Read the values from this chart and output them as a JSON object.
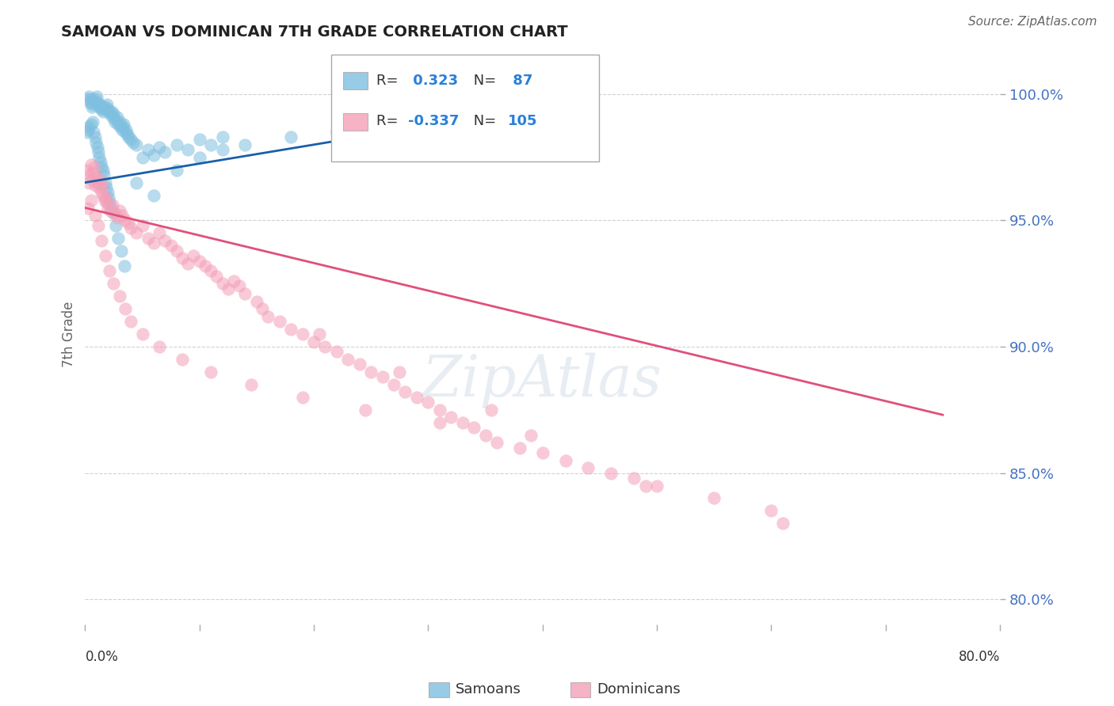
{
  "title": "SAMOAN VS DOMINICAN 7TH GRADE CORRELATION CHART",
  "source": "Source: ZipAtlas.com",
  "ylabel": "7th Grade",
  "yticks": [
    80.0,
    85.0,
    90.0,
    95.0,
    100.0
  ],
  "ytick_labels": [
    "80.0%",
    "85.0%",
    "90.0%",
    "95.0%",
    "100.0%"
  ],
  "xlim": [
    0.0,
    80.0
  ],
  "ylim": [
    79.0,
    102.0
  ],
  "blue_r": 0.323,
  "blue_n": 87,
  "pink_r": -0.337,
  "pink_n": 105,
  "blue_color": "#7fbfdf",
  "pink_color": "#f4a0b8",
  "blue_line_color": "#1a5fa8",
  "pink_line_color": "#e0507a",
  "legend_label_blue": "Samoans",
  "legend_label_pink": "Dominicans",
  "blue_line_x0": 0.0,
  "blue_line_y0": 96.5,
  "blue_line_x1": 40.0,
  "blue_line_y1": 99.5,
  "pink_line_x0": 0.0,
  "pink_line_y0": 95.5,
  "pink_line_x1": 75.0,
  "pink_line_y1": 87.3,
  "blue_x": [
    0.2,
    0.3,
    0.4,
    0.5,
    0.6,
    0.7,
    0.8,
    0.9,
    1.0,
    1.1,
    1.2,
    1.3,
    1.4,
    1.5,
    1.6,
    1.7,
    1.8,
    1.9,
    2.0,
    2.1,
    2.2,
    2.3,
    2.4,
    2.5,
    2.6,
    2.7,
    2.8,
    2.9,
    3.0,
    3.1,
    3.2,
    3.3,
    3.4,
    3.5,
    3.6,
    3.7,
    3.8,
    4.0,
    4.2,
    4.5,
    5.0,
    5.5,
    6.0,
    6.5,
    7.0,
    8.0,
    9.0,
    10.0,
    11.0,
    12.0,
    0.15,
    0.25,
    0.35,
    0.55,
    0.65,
    0.75,
    0.85,
    0.95,
    1.05,
    1.15,
    1.25,
    1.35,
    1.45,
    1.55,
    1.65,
    1.75,
    1.85,
    1.95,
    2.05,
    2.15,
    2.25,
    2.45,
    2.65,
    2.85,
    3.15,
    3.45,
    4.5,
    6.0,
    8.0,
    10.0,
    12.0,
    14.0,
    18.0,
    22.0,
    28.0,
    35.0,
    40.0
  ],
  "blue_y": [
    99.8,
    99.9,
    99.7,
    99.8,
    99.5,
    99.6,
    99.7,
    99.8,
    99.9,
    99.7,
    99.5,
    99.6,
    99.4,
    99.5,
    99.3,
    99.4,
    99.5,
    99.6,
    99.4,
    99.3,
    99.2,
    99.3,
    99.1,
    99.2,
    98.9,
    99.0,
    99.1,
    98.8,
    98.9,
    98.7,
    98.6,
    98.7,
    98.8,
    98.5,
    98.6,
    98.4,
    98.3,
    98.2,
    98.1,
    98.0,
    97.5,
    97.8,
    97.6,
    97.9,
    97.7,
    98.0,
    97.8,
    98.2,
    98.0,
    98.3,
    98.5,
    98.6,
    98.7,
    98.8,
    98.9,
    98.5,
    98.3,
    98.1,
    97.9,
    97.7,
    97.5,
    97.3,
    97.1,
    97.0,
    96.8,
    96.5,
    96.3,
    96.1,
    95.9,
    95.7,
    95.5,
    95.3,
    94.8,
    94.3,
    93.8,
    93.2,
    96.5,
    96.0,
    97.0,
    97.5,
    97.8,
    98.0,
    98.3,
    98.5,
    98.7,
    99.0,
    99.2
  ],
  "pink_x": [
    0.2,
    0.3,
    0.4,
    0.5,
    0.6,
    0.7,
    0.8,
    0.9,
    1.0,
    1.1,
    1.2,
    1.3,
    1.4,
    1.5,
    1.6,
    1.7,
    1.8,
    1.9,
    2.0,
    2.2,
    2.4,
    2.6,
    2.8,
    3.0,
    3.2,
    3.5,
    3.8,
    4.0,
    4.5,
    5.0,
    5.5,
    6.0,
    6.5,
    7.0,
    7.5,
    8.0,
    8.5,
    9.0,
    9.5,
    10.0,
    10.5,
    11.0,
    11.5,
    12.0,
    12.5,
    13.0,
    13.5,
    14.0,
    15.0,
    15.5,
    16.0,
    17.0,
    18.0,
    19.0,
    20.0,
    21.0,
    22.0,
    23.0,
    24.0,
    25.0,
    26.0,
    27.0,
    28.0,
    29.0,
    30.0,
    31.0,
    32.0,
    33.0,
    34.0,
    35.0,
    36.0,
    38.0,
    40.0,
    42.0,
    44.0,
    46.0,
    48.0,
    50.0,
    55.0,
    60.0,
    0.25,
    0.55,
    0.85,
    1.15,
    1.45,
    1.75,
    2.1,
    2.5,
    3.0,
    3.5,
    4.0,
    5.0,
    6.5,
    8.5,
    11.0,
    14.5,
    19.0,
    24.5,
    31.0,
    39.0,
    49.0,
    61.0,
    20.5,
    27.5,
    35.5
  ],
  "pink_y": [
    97.0,
    96.5,
    96.8,
    97.2,
    96.6,
    96.9,
    97.1,
    96.4,
    96.7,
    96.5,
    96.3,
    96.6,
    96.1,
    96.4,
    96.0,
    95.8,
    95.9,
    95.7,
    95.5,
    95.4,
    95.6,
    95.3,
    95.1,
    95.4,
    95.2,
    95.0,
    94.9,
    94.7,
    94.5,
    94.8,
    94.3,
    94.1,
    94.5,
    94.2,
    94.0,
    93.8,
    93.5,
    93.3,
    93.6,
    93.4,
    93.2,
    93.0,
    92.8,
    92.5,
    92.3,
    92.6,
    92.4,
    92.1,
    91.8,
    91.5,
    91.2,
    91.0,
    90.7,
    90.5,
    90.2,
    90.0,
    89.8,
    89.5,
    89.3,
    89.0,
    88.8,
    88.5,
    88.2,
    88.0,
    87.8,
    87.5,
    87.2,
    87.0,
    86.8,
    86.5,
    86.2,
    86.0,
    85.8,
    85.5,
    85.2,
    85.0,
    84.8,
    84.5,
    84.0,
    83.5,
    95.5,
    95.8,
    95.2,
    94.8,
    94.2,
    93.6,
    93.0,
    92.5,
    92.0,
    91.5,
    91.0,
    90.5,
    90.0,
    89.5,
    89.0,
    88.5,
    88.0,
    87.5,
    87.0,
    86.5,
    84.5,
    83.0,
    90.5,
    89.0,
    87.5
  ]
}
